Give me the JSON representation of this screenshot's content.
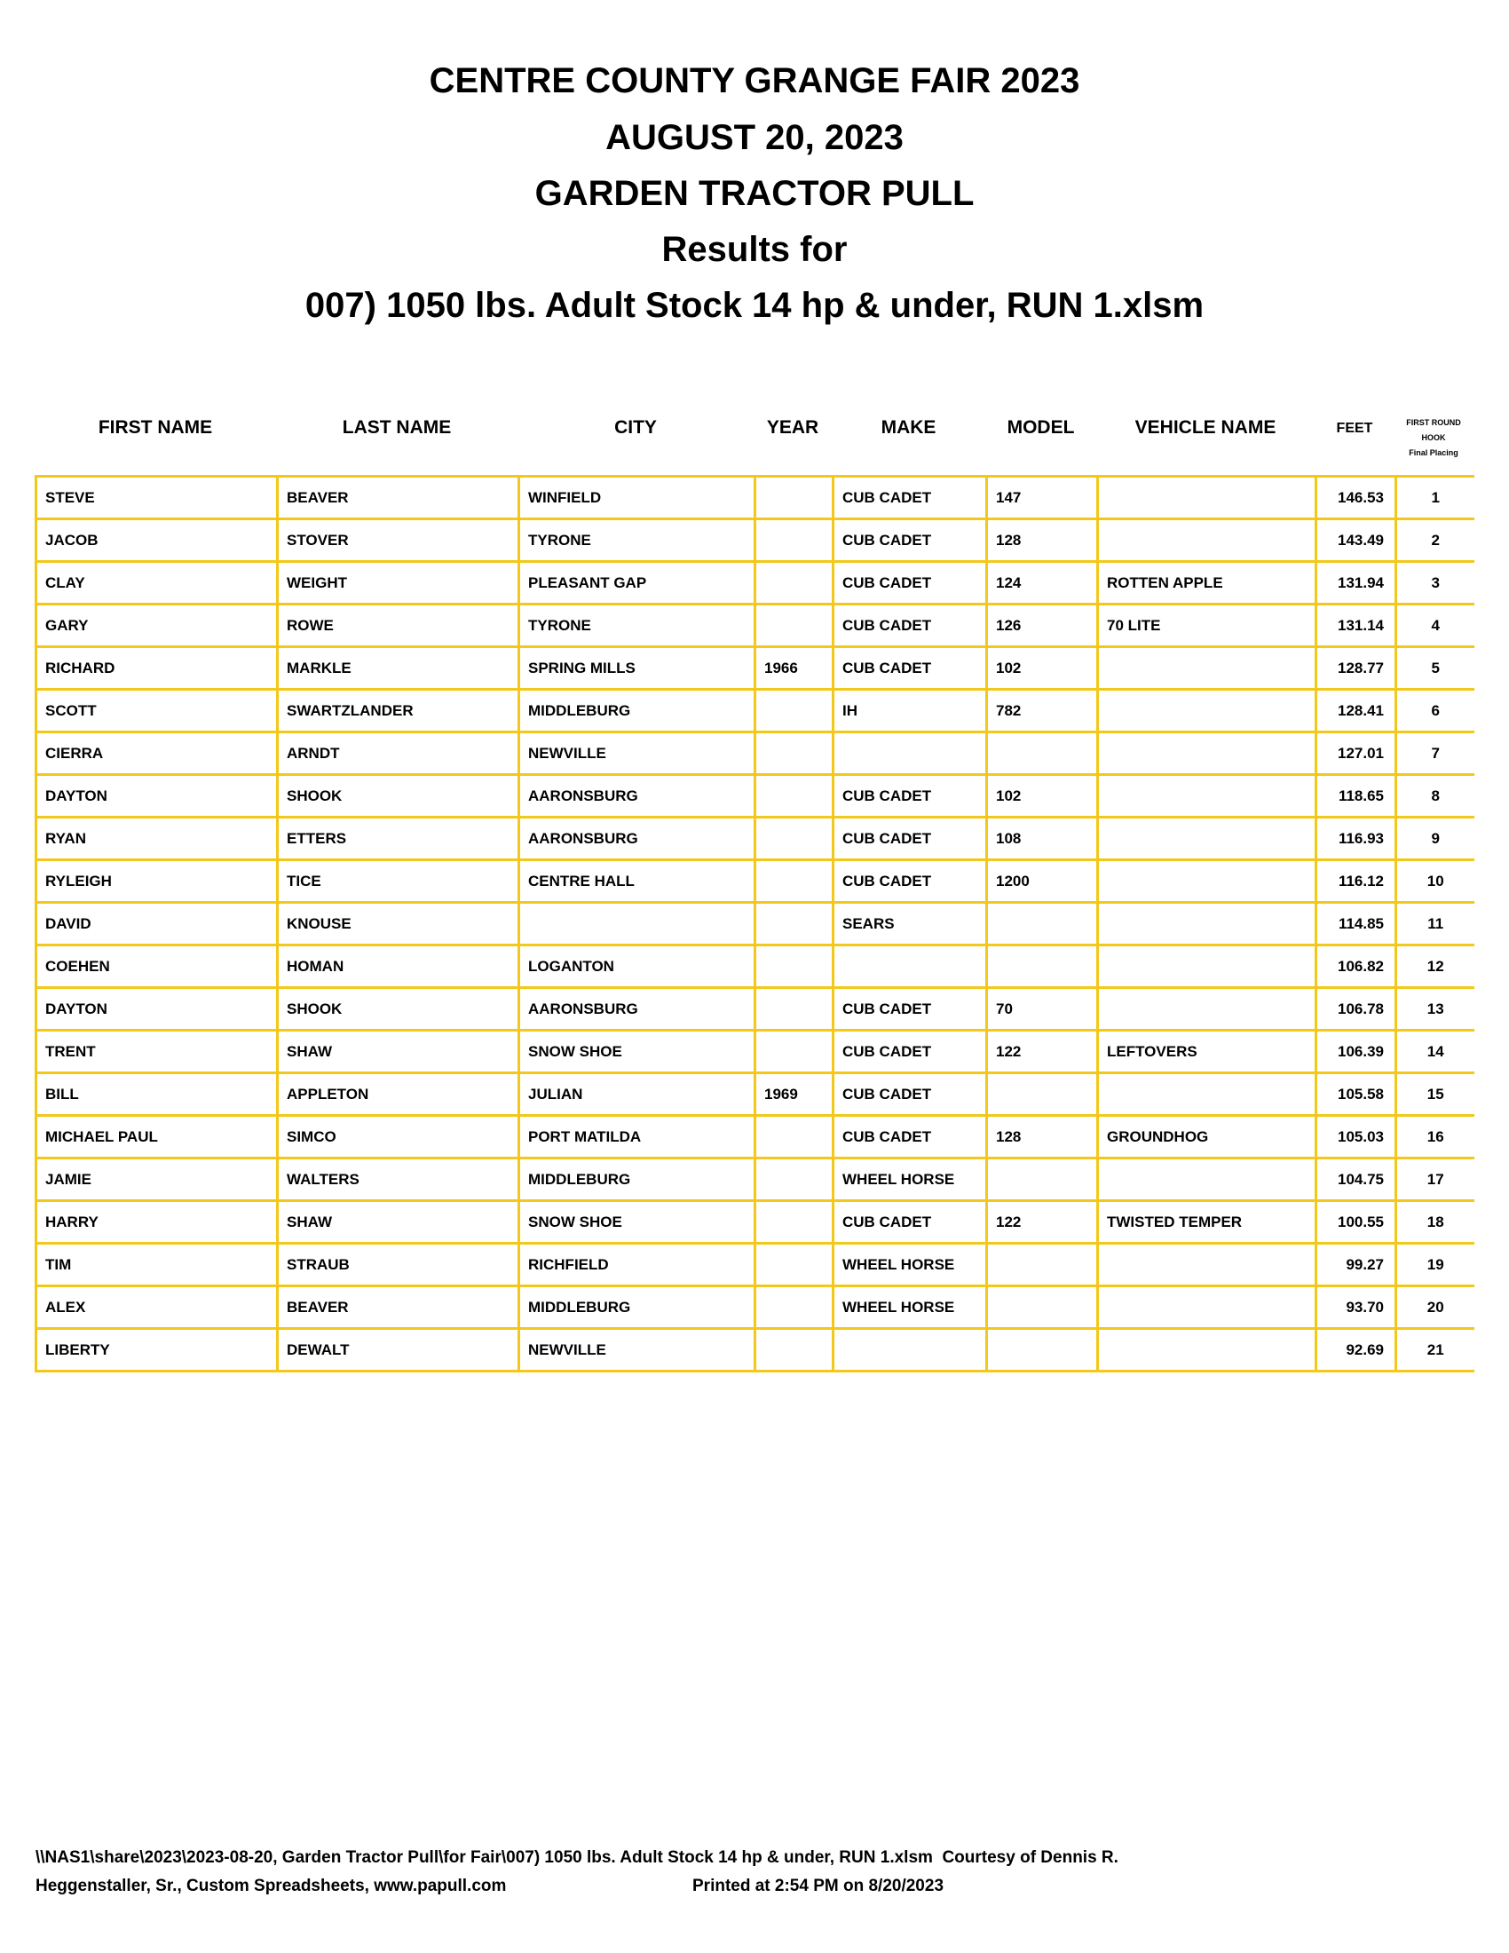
{
  "title_lines": [
    "CENTRE COUNTY GRANGE FAIR 2023",
    "AUGUST 20, 2023",
    "GARDEN TRACTOR PULL",
    "Results for",
    "007) 1050 lbs. Adult Stock 14 hp & under, RUN 1.xlsm"
  ],
  "columns": [
    "FIRST NAME",
    "LAST NAME",
    "CITY",
    "YEAR",
    "MAKE",
    "MODEL",
    "VEHICLE NAME",
    "FEET"
  ],
  "placing_header": [
    "FIRST ROUND",
    "HOOK",
    "Final Placing"
  ],
  "accent_color": "#f2c81a",
  "rows": [
    [
      "STEVE",
      "BEAVER",
      "WINFIELD",
      "",
      "CUB CADET",
      "147",
      "",
      "146.53",
      "1"
    ],
    [
      "JACOB",
      "STOVER",
      "TYRONE",
      "",
      "CUB CADET",
      "128",
      "",
      "143.49",
      "2"
    ],
    [
      "CLAY",
      "WEIGHT",
      "PLEASANT GAP",
      "",
      "CUB CADET",
      "124",
      "ROTTEN APPLE",
      "131.94",
      "3"
    ],
    [
      "GARY",
      "ROWE",
      "TYRONE",
      "",
      "CUB CADET",
      "126",
      "70 LITE",
      "131.14",
      "4"
    ],
    [
      "RICHARD",
      "MARKLE",
      "SPRING MILLS",
      "1966",
      "CUB CADET",
      "102",
      "",
      "128.77",
      "5"
    ],
    [
      "SCOTT",
      "SWARTZLANDER",
      "MIDDLEBURG",
      "",
      "IH",
      "782",
      "",
      "128.41",
      "6"
    ],
    [
      "CIERRA",
      "ARNDT",
      "NEWVILLE",
      "",
      "",
      "",
      "",
      "127.01",
      "7"
    ],
    [
      "DAYTON",
      "SHOOK",
      "AARONSBURG",
      "",
      "CUB CADET",
      "102",
      "",
      "118.65",
      "8"
    ],
    [
      "RYAN",
      "ETTERS",
      "AARONSBURG",
      "",
      "CUB CADET",
      "108",
      "",
      "116.93",
      "9"
    ],
    [
      "RYLEIGH",
      "TICE",
      "CENTRE HALL",
      "",
      "CUB CADET",
      "1200",
      "",
      "116.12",
      "10"
    ],
    [
      "DAVID",
      "KNOUSE",
      "",
      "",
      "SEARS",
      "",
      "",
      "114.85",
      "11"
    ],
    [
      "COEHEN",
      "HOMAN",
      "LOGANTON",
      "",
      "",
      "",
      "",
      "106.82",
      "12"
    ],
    [
      "DAYTON",
      "SHOOK",
      "AARONSBURG",
      "",
      "CUB CADET",
      "70",
      "",
      "106.78",
      "13"
    ],
    [
      "TRENT",
      "SHAW",
      "SNOW SHOE",
      "",
      "CUB CADET",
      "122",
      "LEFTOVERS",
      "106.39",
      "14"
    ],
    [
      "BILL",
      "APPLETON",
      "JULIAN",
      "1969",
      "CUB CADET",
      "",
      "",
      "105.58",
      "15"
    ],
    [
      "MICHAEL PAUL",
      "SIMCO",
      "PORT MATILDA",
      "",
      "CUB CADET",
      "128",
      "GROUNDHOG",
      "105.03",
      "16"
    ],
    [
      "JAMIE",
      "WALTERS",
      "MIDDLEBURG",
      "",
      "WHEEL HORSE",
      "",
      "",
      "104.75",
      "17"
    ],
    [
      "HARRY",
      "SHAW",
      "SNOW SHOE",
      "",
      "CUB CADET",
      "122",
      "TWISTED TEMPER",
      "100.55",
      "18"
    ],
    [
      "TIM",
      "STRAUB",
      "RICHFIELD",
      "",
      "WHEEL HORSE",
      "",
      "",
      "99.27",
      "19"
    ],
    [
      "ALEX",
      "BEAVER",
      "MIDDLEBURG",
      "",
      "WHEEL HORSE",
      "",
      "",
      "93.70",
      "20"
    ],
    [
      "LIBERTY",
      "DEWALT",
      "NEWVILLE",
      "",
      "",
      "",
      "",
      "92.69",
      "21"
    ]
  ],
  "footer": {
    "line1": "\\\\NAS1\\share\\2023\\2023-08-20, Garden Tractor Pull\\for Fair\\007) 1050 lbs. Adult Stock 14 hp & under, RUN 1.xlsm  Courtesy of Dennis R.",
    "line2": "Heggenstaller, Sr., Custom Spreadsheets, www.papull.com",
    "printed": "Printed at 2:54 PM on 8/20/2023"
  }
}
